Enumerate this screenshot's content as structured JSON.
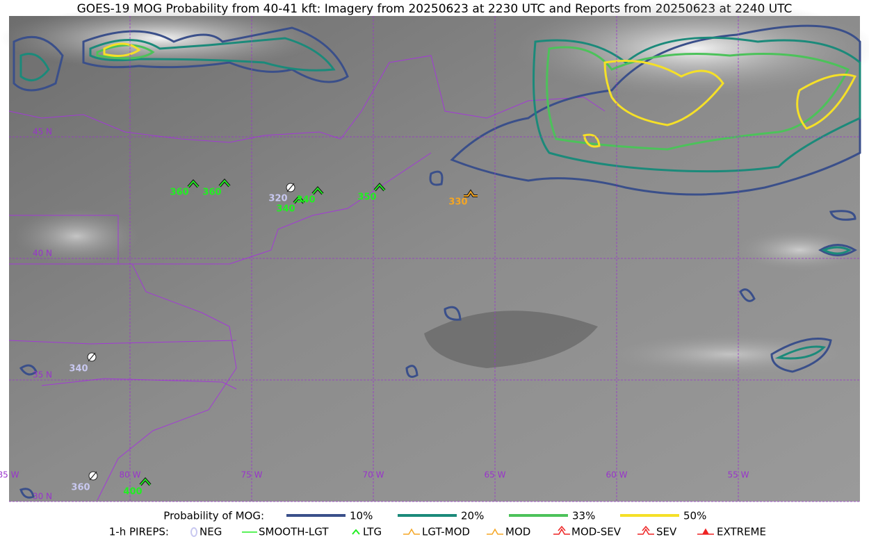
{
  "title": "GOES-19 MOG Probability from 40-41 kft: Imagery from 20250623 at 2230 UTC and Reports from 20250623 at 2240 UTC",
  "map": {
    "grid_color": "#9933cc",
    "lon_labels": [
      "85 W",
      "80 W",
      "75 W",
      "70 W",
      "65 W",
      "60 W",
      "55 W"
    ],
    "lat_labels": [
      "45 N",
      "40 N",
      "35 N",
      "30 N"
    ],
    "reports": [
      {
        "label": "360",
        "color": "#22ee22"
      },
      {
        "label": "360",
        "color": "#22ee22"
      },
      {
        "label": "320",
        "color": "#c8c8f0"
      },
      {
        "label": "340",
        "color": "#22ee22"
      },
      {
        "label": "340",
        "color": "#22ee22"
      },
      {
        "label": "350",
        "color": "#22ee22"
      },
      {
        "label": "330",
        "color": "#f5a623"
      },
      {
        "label": "340",
        "color": "#c8c8f0"
      },
      {
        "label": "360",
        "color": "#c8c8f0"
      },
      {
        "label": "400",
        "color": "#22ee22"
      }
    ]
  },
  "mog_legend": {
    "label": "Probability of MOG:",
    "items": [
      {
        "label": "10%",
        "color": "#3a4f8a"
      },
      {
        "label": "20%",
        "color": "#1b8a7a"
      },
      {
        "label": "33%",
        "color": "#4cc25a"
      },
      {
        "label": "50%",
        "color": "#f5e027"
      }
    ]
  },
  "pirep_legend": {
    "label": "1-h PIREPS:",
    "items": [
      {
        "label": "NEG",
        "color": "#c8c8f0"
      },
      {
        "label": "SMOOTH-LGT",
        "color": "#22ee22"
      },
      {
        "label": "LTG",
        "color": "#22ee22"
      },
      {
        "label": "LGT-MOD",
        "color": "#f5a623"
      },
      {
        "label": "MOD",
        "color": "#f5a623"
      },
      {
        "label": "MOD-SEV",
        "color": "#ee2222"
      },
      {
        "label": "SEV",
        "color": "#ee2222"
      },
      {
        "label": "EXTREME",
        "color": "#ee2222"
      }
    ]
  }
}
